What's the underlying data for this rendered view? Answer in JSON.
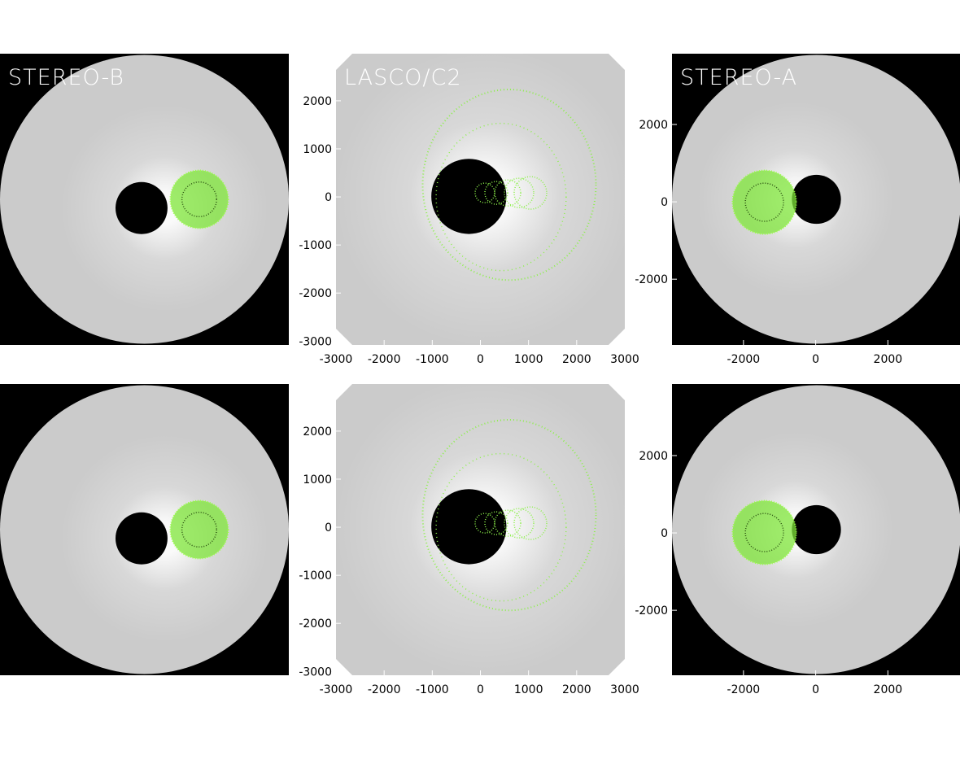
{
  "panels": [
    {
      "title": "STEREO-B"
    },
    {
      "title": "LASCO/C2",
      "xlim": [
        -3000,
        3000
      ],
      "ylim": [
        -3080,
        2980
      ],
      "xticks": [
        -3000,
        -2000,
        -1000,
        0,
        1000,
        2000,
        3000
      ],
      "yticks": [
        -3000,
        -2000,
        -1000,
        0,
        1000,
        2000
      ]
    },
    {
      "title": "STEREO-A",
      "xlim": [
        -3980,
        4020
      ],
      "ylim": [
        -3700,
        3830
      ],
      "xticks": [
        -2000,
        0,
        2000
      ],
      "yticks": [
        -2000,
        0,
        2000
      ]
    },
    {},
    {
      "xlim": [
        -3000,
        3000
      ],
      "ylim": [
        -3080,
        2980
      ],
      "xticks": [
        -3000,
        -2000,
        -1000,
        0,
        1000,
        2000,
        3000
      ],
      "yticks": [
        -3000,
        -2000,
        -1000,
        0,
        1000,
        2000
      ]
    },
    {
      "xlim": [
        -3980,
        4020
      ],
      "ylim": [
        -3680,
        3850
      ],
      "xticks": [
        -2000,
        0,
        2000
      ],
      "yticks": [
        -2000,
        0,
        2000
      ]
    }
  ]
}
